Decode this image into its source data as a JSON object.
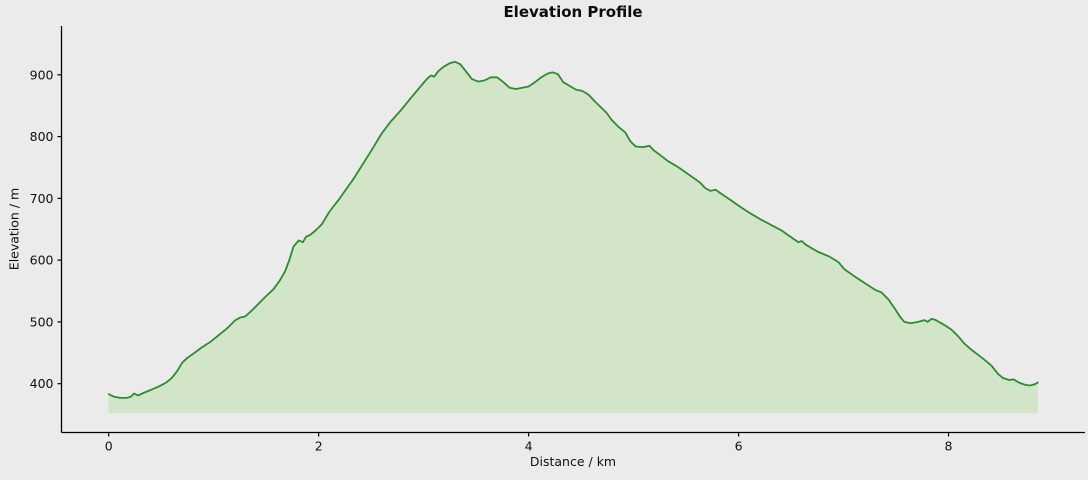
{
  "figure": {
    "background_color": "#ebebeb"
  },
  "chart_data": {
    "type": "area",
    "title": "Elevation Profile",
    "xlabel": "Distance / km",
    "ylabel": "Elevation / m",
    "x_ticks": [
      0,
      2,
      4,
      6,
      8
    ],
    "y_ticks": [
      400,
      500,
      600,
      700,
      800,
      900
    ],
    "xlim": [
      -0.45,
      9.3
    ],
    "ylim": [
      321,
      979
    ],
    "grid": false,
    "legend": null,
    "line_color": "#2e8b2e",
    "fill_color": "#d3e5c9",
    "spine_color": "#000000",
    "fill_baseline": 352,
    "x_range_km": [
      0,
      8.85
    ],
    "max_elevation_m": 921,
    "min_elevation_m": 377,
    "series": [
      {
        "name": "elevation",
        "points": [
          [
            0.0,
            383
          ],
          [
            0.05,
            379
          ],
          [
            0.11,
            377
          ],
          [
            0.17,
            377
          ],
          [
            0.21,
            379
          ],
          [
            0.24,
            384
          ],
          [
            0.28,
            381
          ],
          [
            0.33,
            385
          ],
          [
            0.4,
            390
          ],
          [
            0.47,
            395
          ],
          [
            0.54,
            401
          ],
          [
            0.6,
            409
          ],
          [
            0.65,
            420
          ],
          [
            0.7,
            434
          ],
          [
            0.75,
            442
          ],
          [
            0.81,
            449
          ],
          [
            0.88,
            458
          ],
          [
            0.97,
            468
          ],
          [
            1.05,
            479
          ],
          [
            1.13,
            490
          ],
          [
            1.2,
            502
          ],
          [
            1.25,
            507
          ],
          [
            1.3,
            509
          ],
          [
            1.36,
            518
          ],
          [
            1.43,
            530
          ],
          [
            1.5,
            542
          ],
          [
            1.57,
            553
          ],
          [
            1.63,
            567
          ],
          [
            1.68,
            582
          ],
          [
            1.72,
            600
          ],
          [
            1.76,
            622
          ],
          [
            1.81,
            632
          ],
          [
            1.85,
            629
          ],
          [
            1.88,
            638
          ],
          [
            1.92,
            641
          ],
          [
            1.97,
            648
          ],
          [
            2.03,
            658
          ],
          [
            2.1,
            678
          ],
          [
            2.2,
            700
          ],
          [
            2.3,
            724
          ],
          [
            2.33,
            731
          ],
          [
            2.4,
            750
          ],
          [
            2.5,
            777
          ],
          [
            2.6,
            805
          ],
          [
            2.69,
            825
          ],
          [
            2.78,
            842
          ],
          [
            2.88,
            863
          ],
          [
            2.97,
            881
          ],
          [
            3.03,
            893
          ],
          [
            3.07,
            899
          ],
          [
            3.1,
            897
          ],
          [
            3.14,
            906
          ],
          [
            3.19,
            913
          ],
          [
            3.25,
            919
          ],
          [
            3.3,
            921
          ],
          [
            3.35,
            917
          ],
          [
            3.4,
            906
          ],
          [
            3.46,
            893
          ],
          [
            3.52,
            889
          ],
          [
            3.58,
            891
          ],
          [
            3.64,
            896
          ],
          [
            3.7,
            896
          ],
          [
            3.76,
            888
          ],
          [
            3.82,
            879
          ],
          [
            3.88,
            877
          ],
          [
            3.94,
            879
          ],
          [
            4.0,
            881
          ],
          [
            4.06,
            888
          ],
          [
            4.12,
            896
          ],
          [
            4.18,
            902
          ],
          [
            4.23,
            904
          ],
          [
            4.28,
            901
          ],
          [
            4.33,
            888
          ],
          [
            4.39,
            882
          ],
          [
            4.45,
            876
          ],
          [
            4.51,
            874
          ],
          [
            4.57,
            868
          ],
          [
            4.63,
            857
          ],
          [
            4.69,
            847
          ],
          [
            4.74,
            839
          ],
          [
            4.79,
            827
          ],
          [
            4.86,
            815
          ],
          [
            4.92,
            807
          ],
          [
            4.97,
            792
          ],
          [
            5.02,
            784
          ],
          [
            5.09,
            783
          ],
          [
            5.15,
            785
          ],
          [
            5.19,
            778
          ],
          [
            5.26,
            769
          ],
          [
            5.33,
            760
          ],
          [
            5.43,
            750
          ],
          [
            5.53,
            738
          ],
          [
            5.63,
            726
          ],
          [
            5.68,
            717
          ],
          [
            5.73,
            712
          ],
          [
            5.78,
            714
          ],
          [
            5.83,
            708
          ],
          [
            5.91,
            699
          ],
          [
            6.01,
            687
          ],
          [
            6.11,
            676
          ],
          [
            6.21,
            666
          ],
          [
            6.31,
            657
          ],
          [
            6.41,
            648
          ],
          [
            6.51,
            636
          ],
          [
            6.57,
            629
          ],
          [
            6.6,
            631
          ],
          [
            6.64,
            625
          ],
          [
            6.75,
            614
          ],
          [
            6.86,
            606
          ],
          [
            6.95,
            597
          ],
          [
            7.01,
            585
          ],
          [
            7.11,
            573
          ],
          [
            7.21,
            562
          ],
          [
            7.31,
            551
          ],
          [
            7.36,
            548
          ],
          [
            7.43,
            536
          ],
          [
            7.49,
            521
          ],
          [
            7.54,
            508
          ],
          [
            7.58,
            500
          ],
          [
            7.64,
            498
          ],
          [
            7.71,
            500
          ],
          [
            7.77,
            503
          ],
          [
            7.8,
            500
          ],
          [
            7.84,
            505
          ],
          [
            7.88,
            503
          ],
          [
            7.93,
            498
          ],
          [
            7.98,
            493
          ],
          [
            8.03,
            487
          ],
          [
            8.09,
            477
          ],
          [
            8.15,
            465
          ],
          [
            8.21,
            456
          ],
          [
            8.28,
            447
          ],
          [
            8.34,
            439
          ],
          [
            8.41,
            429
          ],
          [
            8.47,
            416
          ],
          [
            8.52,
            409
          ],
          [
            8.58,
            406
          ],
          [
            8.62,
            407
          ],
          [
            8.67,
            402
          ],
          [
            8.73,
            398
          ],
          [
            8.78,
            397
          ],
          [
            8.82,
            399
          ],
          [
            8.85,
            402
          ]
        ]
      }
    ]
  }
}
